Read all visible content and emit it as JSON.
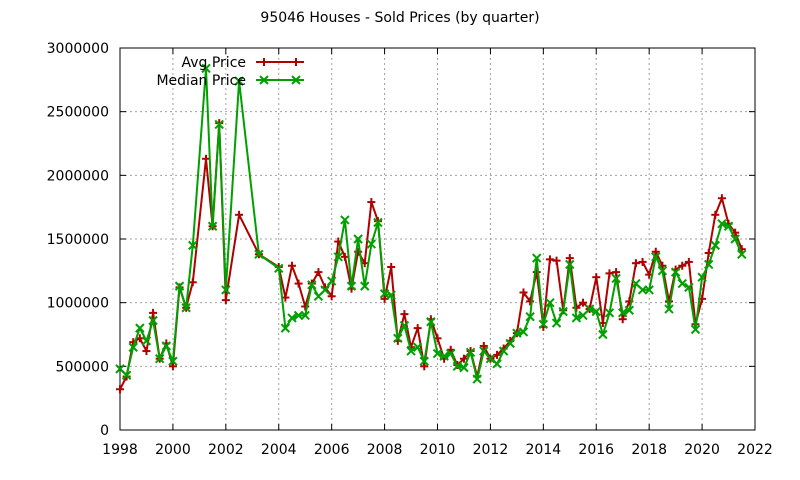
{
  "chart_data": {
    "type": "line",
    "title": "95046 Houses - Sold Prices (by quarter)",
    "xlabel": "",
    "ylabel": "",
    "xlim": [
      1998,
      2022
    ],
    "ylim": [
      0,
      3000000
    ],
    "x_ticks": [
      "1998",
      "2000",
      "2002",
      "2004",
      "2006",
      "2008",
      "2010",
      "2012",
      "2014",
      "2016",
      "2018",
      "2020",
      "2022"
    ],
    "y_ticks": [
      "0",
      "500000",
      "1000000",
      "1500000",
      "2000000",
      "2500000",
      "3000000"
    ],
    "grid": true,
    "legend_position": "top-left",
    "series": [
      {
        "name": "Avg Price",
        "color": "#b00000",
        "marker": "plus",
        "points": [
          [
            1998.0,
            320000
          ],
          [
            1998.25,
            420000
          ],
          [
            1998.5,
            690000
          ],
          [
            1998.75,
            720000
          ],
          [
            1999.0,
            620000
          ],
          [
            1999.25,
            920000
          ],
          [
            1999.5,
            560000
          ],
          [
            1999.75,
            680000
          ],
          [
            2000.0,
            500000
          ],
          [
            2000.25,
            1120000
          ],
          [
            2000.5,
            960000
          ],
          [
            2000.75,
            1160000
          ],
          [
            2001.25,
            2130000
          ],
          [
            2001.5,
            1600000
          ],
          [
            2001.75,
            2410000
          ],
          [
            2002.0,
            1020000
          ],
          [
            2002.5,
            1690000
          ],
          [
            2003.25,
            1380000
          ],
          [
            2004.0,
            1280000
          ],
          [
            2004.25,
            1040000
          ],
          [
            2004.5,
            1290000
          ],
          [
            2004.75,
            1150000
          ],
          [
            2005.0,
            970000
          ],
          [
            2005.25,
            1150000
          ],
          [
            2005.5,
            1240000
          ],
          [
            2005.75,
            1120000
          ],
          [
            2006.0,
            1050000
          ],
          [
            2006.25,
            1480000
          ],
          [
            2006.5,
            1360000
          ],
          [
            2006.75,
            1110000
          ],
          [
            2007.0,
            1400000
          ],
          [
            2007.25,
            1310000
          ],
          [
            2007.5,
            1790000
          ],
          [
            2007.75,
            1640000
          ],
          [
            2008.0,
            1030000
          ],
          [
            2008.25,
            1280000
          ],
          [
            2008.5,
            700000
          ],
          [
            2008.75,
            910000
          ],
          [
            2009.0,
            650000
          ],
          [
            2009.25,
            800000
          ],
          [
            2009.5,
            500000
          ],
          [
            2009.75,
            870000
          ],
          [
            2010.0,
            720000
          ],
          [
            2010.25,
            560000
          ],
          [
            2010.5,
            630000
          ],
          [
            2010.75,
            510000
          ],
          [
            2011.0,
            560000
          ],
          [
            2011.25,
            620000
          ],
          [
            2011.5,
            420000
          ],
          [
            2011.75,
            660000
          ],
          [
            2012.0,
            560000
          ],
          [
            2012.25,
            590000
          ],
          [
            2012.5,
            640000
          ],
          [
            2012.75,
            700000
          ],
          [
            2013.0,
            760000
          ],
          [
            2013.25,
            1080000
          ],
          [
            2013.5,
            1010000
          ],
          [
            2013.75,
            1240000
          ],
          [
            2014.0,
            810000
          ],
          [
            2014.25,
            1340000
          ],
          [
            2014.5,
            1330000
          ],
          [
            2014.75,
            940000
          ],
          [
            2015.0,
            1350000
          ],
          [
            2015.25,
            960000
          ],
          [
            2015.5,
            1000000
          ],
          [
            2015.75,
            950000
          ],
          [
            2016.0,
            1200000
          ],
          [
            2016.25,
            840000
          ],
          [
            2016.5,
            1230000
          ],
          [
            2016.75,
            1240000
          ],
          [
            2017.0,
            870000
          ],
          [
            2017.25,
            1010000
          ],
          [
            2017.5,
            1310000
          ],
          [
            2017.75,
            1320000
          ],
          [
            2018.0,
            1220000
          ],
          [
            2018.25,
            1400000
          ],
          [
            2018.5,
            1290000
          ],
          [
            2018.75,
            1010000
          ],
          [
            2019.0,
            1260000
          ],
          [
            2019.25,
            1290000
          ],
          [
            2019.5,
            1320000
          ],
          [
            2019.75,
            830000
          ],
          [
            2020.0,
            1030000
          ],
          [
            2020.25,
            1390000
          ],
          [
            2020.5,
            1690000
          ],
          [
            2020.75,
            1820000
          ],
          [
            2021.0,
            1620000
          ],
          [
            2021.25,
            1550000
          ],
          [
            2021.5,
            1420000
          ]
        ]
      },
      {
        "name": "Median Price",
        "color": "#00a000",
        "marker": "x",
        "points": [
          [
            1998.0,
            480000
          ],
          [
            1998.25,
            430000
          ],
          [
            1998.5,
            650000
          ],
          [
            1998.75,
            800000
          ],
          [
            1999.0,
            700000
          ],
          [
            1999.25,
            860000
          ],
          [
            1999.5,
            560000
          ],
          [
            1999.75,
            660000
          ],
          [
            2000.0,
            540000
          ],
          [
            2000.25,
            1130000
          ],
          [
            2000.5,
            960000
          ],
          [
            2000.75,
            1450000
          ],
          [
            2001.25,
            2840000
          ],
          [
            2001.5,
            1600000
          ],
          [
            2001.75,
            2400000
          ],
          [
            2002.0,
            1100000
          ],
          [
            2002.5,
            2740000
          ],
          [
            2003.25,
            1380000
          ],
          [
            2004.0,
            1270000
          ],
          [
            2004.25,
            800000
          ],
          [
            2004.5,
            880000
          ],
          [
            2004.75,
            900000
          ],
          [
            2005.0,
            900000
          ],
          [
            2005.25,
            1140000
          ],
          [
            2005.5,
            1050000
          ],
          [
            2005.75,
            1100000
          ],
          [
            2006.0,
            1170000
          ],
          [
            2006.25,
            1360000
          ],
          [
            2006.5,
            1650000
          ],
          [
            2006.75,
            1130000
          ],
          [
            2007.0,
            1500000
          ],
          [
            2007.25,
            1130000
          ],
          [
            2007.5,
            1460000
          ],
          [
            2007.75,
            1630000
          ],
          [
            2008.0,
            1070000
          ],
          [
            2008.25,
            1060000
          ],
          [
            2008.5,
            720000
          ],
          [
            2008.75,
            820000
          ],
          [
            2009.0,
            620000
          ],
          [
            2009.25,
            650000
          ],
          [
            2009.5,
            540000
          ],
          [
            2009.75,
            850000
          ],
          [
            2010.0,
            600000
          ],
          [
            2010.25,
            580000
          ],
          [
            2010.5,
            600000
          ],
          [
            2010.75,
            500000
          ],
          [
            2011.0,
            490000
          ],
          [
            2011.25,
            610000
          ],
          [
            2011.5,
            400000
          ],
          [
            2011.75,
            620000
          ],
          [
            2012.0,
            560000
          ],
          [
            2012.25,
            520000
          ],
          [
            2012.5,
            620000
          ],
          [
            2012.75,
            680000
          ],
          [
            2013.0,
            760000
          ],
          [
            2013.25,
            770000
          ],
          [
            2013.5,
            890000
          ],
          [
            2013.75,
            1350000
          ],
          [
            2014.0,
            830000
          ],
          [
            2014.25,
            1000000
          ],
          [
            2014.5,
            840000
          ],
          [
            2014.75,
            930000
          ],
          [
            2015.0,
            1300000
          ],
          [
            2015.25,
            880000
          ],
          [
            2015.5,
            900000
          ],
          [
            2015.75,
            950000
          ],
          [
            2016.0,
            930000
          ],
          [
            2016.25,
            750000
          ],
          [
            2016.5,
            920000
          ],
          [
            2016.75,
            1190000
          ],
          [
            2017.0,
            920000
          ],
          [
            2017.25,
            940000
          ],
          [
            2017.5,
            1150000
          ],
          [
            2017.75,
            1100000
          ],
          [
            2018.0,
            1100000
          ],
          [
            2018.25,
            1360000
          ],
          [
            2018.5,
            1250000
          ],
          [
            2018.75,
            950000
          ],
          [
            2019.0,
            1240000
          ],
          [
            2019.25,
            1150000
          ],
          [
            2019.5,
            1120000
          ],
          [
            2019.75,
            790000
          ],
          [
            2020.0,
            1200000
          ],
          [
            2020.25,
            1300000
          ],
          [
            2020.5,
            1450000
          ],
          [
            2020.75,
            1620000
          ],
          [
            2021.0,
            1600000
          ],
          [
            2021.25,
            1500000
          ],
          [
            2021.5,
            1380000
          ]
        ]
      }
    ]
  }
}
